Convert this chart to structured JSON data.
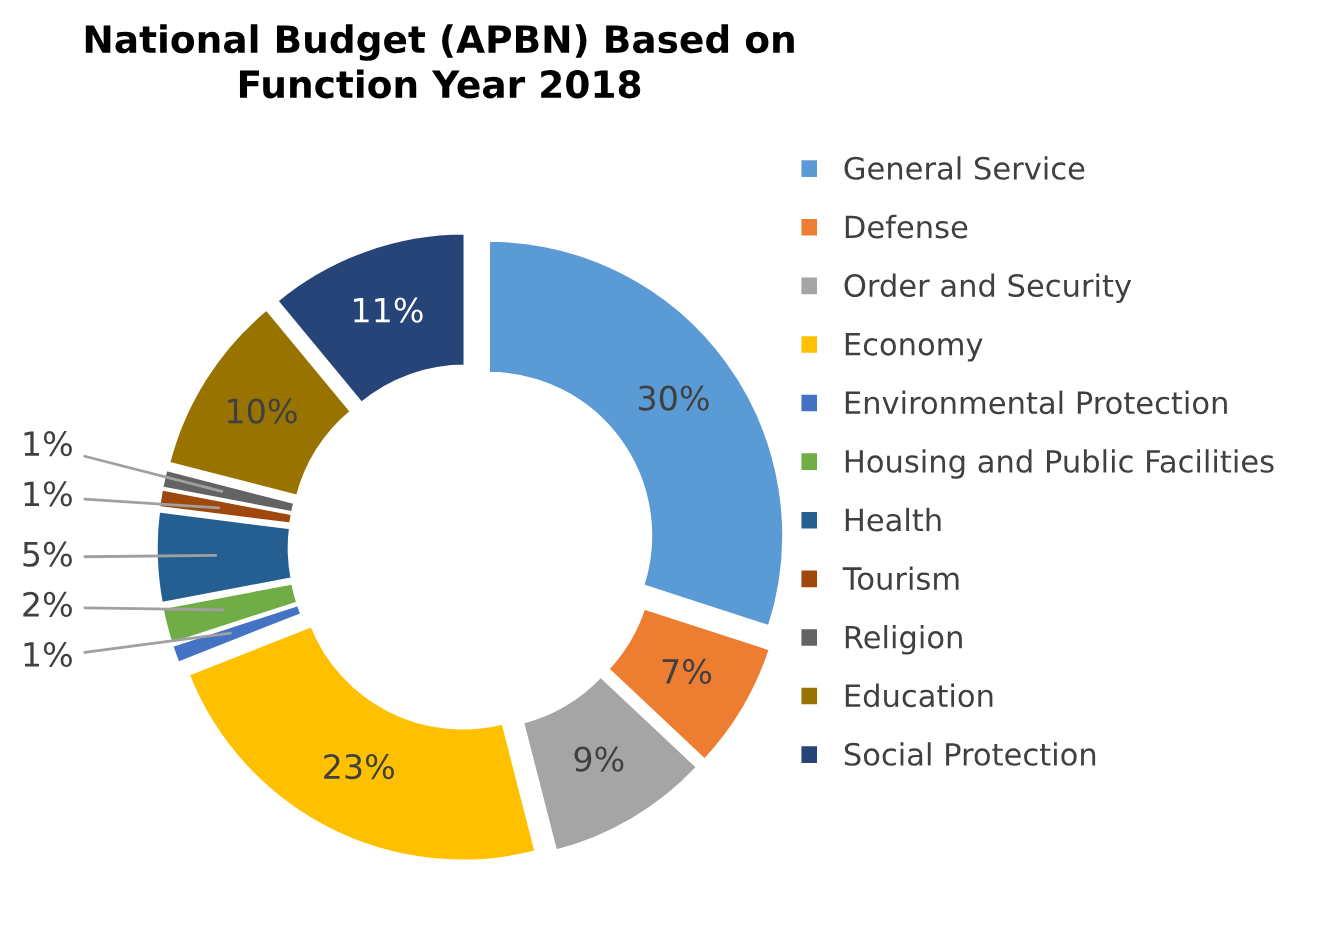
{
  "chart_data": {
    "type": "donut",
    "title": "National Budget (APBN) Based on\nFunction Year 2018",
    "categories": [
      "General Service",
      "Defense",
      "Order and Security",
      "Economy",
      "Environmental Protection",
      "Housing and Public Facilities",
      "Health",
      "Tourism",
      "Religion",
      "Education",
      "Social Protection"
    ],
    "values": [
      30,
      7,
      9,
      23,
      1,
      2,
      5,
      1,
      1,
      10,
      11
    ],
    "colors": [
      "#5b9bd5",
      "#ed7d31",
      "#a5a5a5",
      "#ffc000",
      "#4472c4",
      "#70ad47",
      "#255e91",
      "#9e480e",
      "#636363",
      "#997300",
      "#264478"
    ],
    "value_labels": [
      "30%",
      "7%",
      "9%",
      "23%",
      "1%",
      "2%",
      "5%",
      "1%",
      "1%",
      "10%",
      "11%"
    ],
    "legend": "right"
  }
}
